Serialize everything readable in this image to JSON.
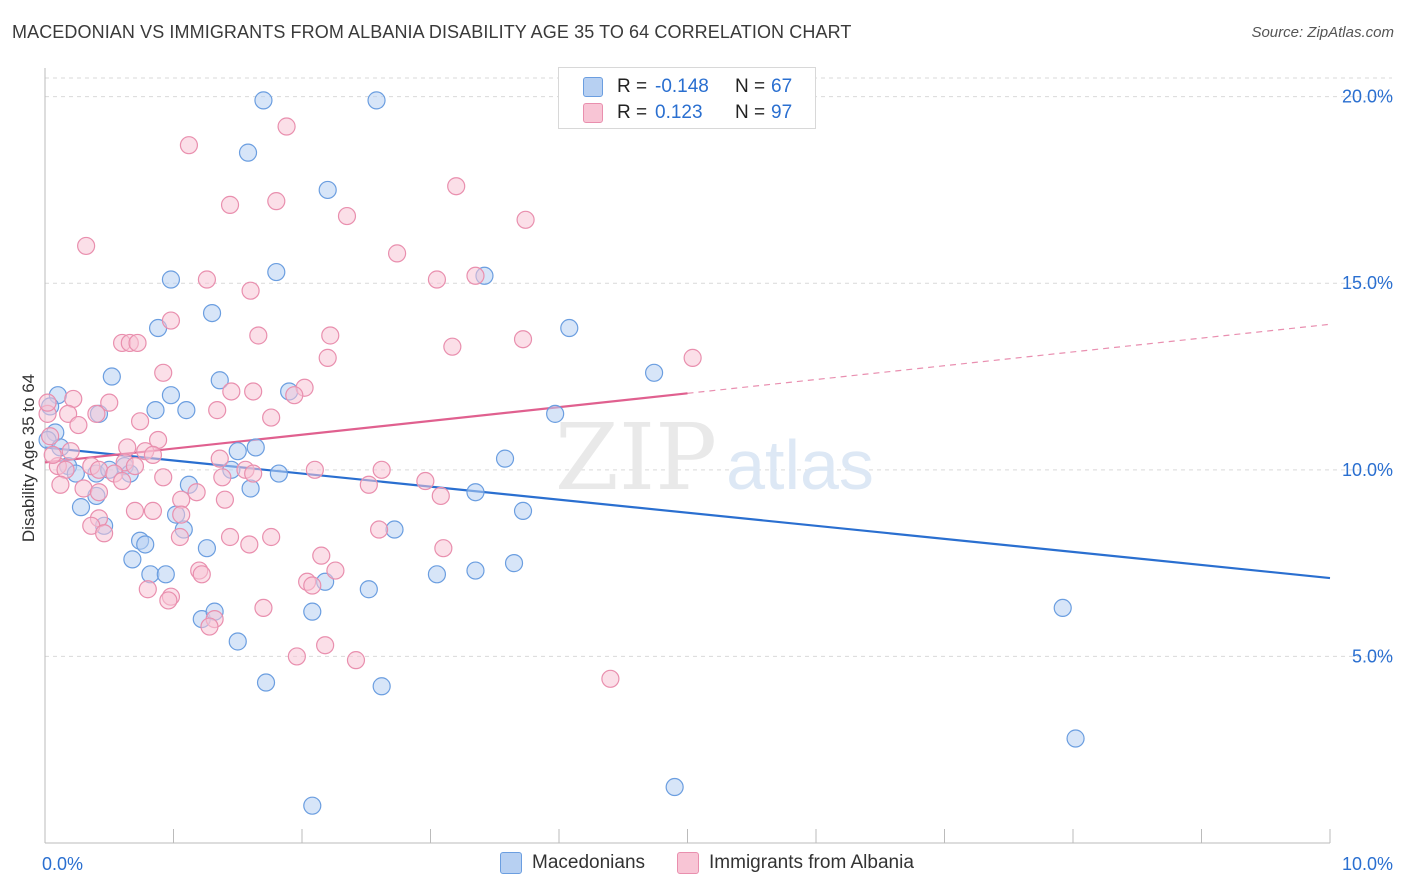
{
  "title": "MACEDONIAN VS IMMIGRANTS FROM ALBANIA DISABILITY AGE 35 TO 64 CORRELATION CHART",
  "source": "Source: ZipAtlas.com",
  "watermark": {
    "zip": "ZIP",
    "atlas": "atlas"
  },
  "legend_top": {
    "rows": [
      {
        "r_label": "R =",
        "r_value": "-0.148",
        "n_label": "N =",
        "n_value": "67"
      },
      {
        "r_label": "R =",
        "r_value": "0.123",
        "n_label": "N =",
        "n_value": "97"
      }
    ]
  },
  "legend_bottom": {
    "items": [
      {
        "label": "Macedonians"
      },
      {
        "label": "Immigrants from Albania"
      }
    ]
  },
  "colors": {
    "blue_fill": "#b7d0f2",
    "blue_stroke": "#6b9ee0",
    "blue_line": "#2a6fd0",
    "pink_fill": "#f8c5d5",
    "pink_stroke": "#e98fae",
    "pink_line": "#e0608f",
    "axis_text": "#2a6fd0",
    "grid": "#d9d9d9"
  },
  "chart_data": {
    "type": "scatter",
    "title": "MACEDONIAN VS IMMIGRANTS FROM ALBANIA DISABILITY AGE 35 TO 64 CORRELATION CHART",
    "xlabel": "",
    "ylabel": "Disability Age 35 to 64",
    "xlim": [
      0,
      10
    ],
    "ylim": [
      0,
      20.5
    ],
    "x_tick_labels": [
      {
        "value": 0,
        "label": "0.0%"
      },
      {
        "value": 10,
        "label": "10.0%"
      }
    ],
    "y_ticks": [
      {
        "value": 5,
        "label": "5.0%"
      },
      {
        "value": 10,
        "label": "10.0%"
      },
      {
        "value": 15,
        "label": "15.0%"
      },
      {
        "value": 20,
        "label": "20.0%"
      }
    ],
    "grid": true,
    "series": [
      {
        "name": "Macedonians",
        "color": "blue",
        "R": -0.148,
        "N": 67,
        "trend": {
          "x0": 0.0,
          "y0": 10.6,
          "x1": 10.0,
          "y1": 7.1,
          "dashed_from": null
        },
        "points": [
          [
            1.7,
            19.9
          ],
          [
            2.58,
            19.9
          ],
          [
            4.08,
            19.6
          ],
          [
            1.58,
            18.5
          ],
          [
            2.2,
            17.5
          ],
          [
            0.98,
            15.1
          ],
          [
            1.8,
            15.3
          ],
          [
            3.42,
            15.2
          ],
          [
            1.3,
            14.2
          ],
          [
            0.88,
            13.8
          ],
          [
            4.08,
            13.8
          ],
          [
            0.52,
            12.5
          ],
          [
            1.36,
            12.4
          ],
          [
            0.1,
            12.0
          ],
          [
            0.98,
            12.0
          ],
          [
            1.9,
            12.1
          ],
          [
            4.74,
            12.6
          ],
          [
            0.04,
            11.7
          ],
          [
            0.42,
            11.5
          ],
          [
            0.86,
            11.6
          ],
          [
            1.1,
            11.6
          ],
          [
            3.97,
            11.5
          ],
          [
            0.08,
            11.0
          ],
          [
            0.02,
            10.8
          ],
          [
            0.12,
            10.6
          ],
          [
            1.5,
            10.5
          ],
          [
            1.64,
            10.6
          ],
          [
            3.58,
            10.3
          ],
          [
            0.18,
            10.1
          ],
          [
            0.62,
            10.1
          ],
          [
            0.24,
            9.9
          ],
          [
            0.4,
            9.9
          ],
          [
            0.66,
            9.9
          ],
          [
            1.45,
            10.0
          ],
          [
            1.82,
            9.9
          ],
          [
            0.5,
            10.0
          ],
          [
            1.12,
            9.6
          ],
          [
            1.6,
            9.5
          ],
          [
            0.4,
            9.3
          ],
          [
            3.35,
            9.4
          ],
          [
            0.28,
            9.0
          ],
          [
            1.02,
            8.8
          ],
          [
            3.72,
            8.9
          ],
          [
            0.46,
            8.5
          ],
          [
            1.08,
            8.4
          ],
          [
            2.72,
            8.4
          ],
          [
            0.74,
            8.1
          ],
          [
            0.78,
            8.0
          ],
          [
            1.26,
            7.9
          ],
          [
            0.68,
            7.6
          ],
          [
            3.65,
            7.5
          ],
          [
            0.82,
            7.2
          ],
          [
            0.94,
            7.2
          ],
          [
            3.05,
            7.2
          ],
          [
            3.35,
            7.3
          ],
          [
            2.18,
            7.0
          ],
          [
            2.52,
            6.8
          ],
          [
            7.92,
            6.3
          ],
          [
            1.22,
            6.0
          ],
          [
            1.32,
            6.2
          ],
          [
            2.08,
            6.2
          ],
          [
            1.5,
            5.4
          ],
          [
            1.72,
            4.3
          ],
          [
            2.62,
            4.2
          ],
          [
            8.02,
            2.8
          ],
          [
            4.9,
            1.5
          ],
          [
            2.08,
            1.0
          ]
        ]
      },
      {
        "name": "Immigrants from Albania",
        "color": "pink",
        "R": 0.123,
        "N": 97,
        "trend": {
          "x0": 0.0,
          "y0": 10.2,
          "x1": 10.0,
          "y1": 13.9,
          "dashed_from": 5.0
        },
        "points": [
          [
            1.12,
            18.7
          ],
          [
            1.88,
            19.2
          ],
          [
            1.8,
            17.2
          ],
          [
            1.44,
            17.1
          ],
          [
            3.2,
            17.6
          ],
          [
            2.35,
            16.8
          ],
          [
            3.74,
            16.7
          ],
          [
            0.32,
            16.0
          ],
          [
            2.74,
            15.8
          ],
          [
            1.26,
            15.1
          ],
          [
            1.6,
            14.8
          ],
          [
            3.05,
            15.1
          ],
          [
            3.35,
            15.2
          ],
          [
            0.98,
            14.0
          ],
          [
            1.66,
            13.6
          ],
          [
            2.22,
            13.6
          ],
          [
            0.6,
            13.4
          ],
          [
            0.66,
            13.4
          ],
          [
            0.72,
            13.4
          ],
          [
            3.17,
            13.3
          ],
          [
            3.72,
            13.5
          ],
          [
            2.2,
            13.0
          ],
          [
            5.04,
            13.0
          ],
          [
            0.92,
            12.6
          ],
          [
            1.45,
            12.1
          ],
          [
            1.62,
            12.1
          ],
          [
            2.02,
            12.2
          ],
          [
            1.94,
            12.0
          ],
          [
            0.22,
            11.9
          ],
          [
            0.5,
            11.8
          ],
          [
            0.02,
            11.5
          ],
          [
            0.18,
            11.5
          ],
          [
            0.4,
            11.5
          ],
          [
            1.34,
            11.6
          ],
          [
            1.76,
            11.4
          ],
          [
            0.74,
            11.3
          ],
          [
            0.26,
            11.2
          ],
          [
            0.04,
            10.9
          ],
          [
            0.2,
            10.5
          ],
          [
            0.64,
            10.6
          ],
          [
            0.78,
            10.5
          ],
          [
            0.88,
            10.8
          ],
          [
            0.84,
            10.4
          ],
          [
            1.36,
            10.3
          ],
          [
            0.62,
            10.2
          ],
          [
            0.1,
            10.1
          ],
          [
            0.36,
            10.1
          ],
          [
            0.16,
            10.0
          ],
          [
            0.42,
            10.0
          ],
          [
            0.54,
            9.9
          ],
          [
            0.7,
            10.1
          ],
          [
            1.56,
            10.0
          ],
          [
            1.62,
            9.9
          ],
          [
            2.1,
            10.0
          ],
          [
            2.62,
            10.0
          ],
          [
            0.6,
            9.7
          ],
          [
            0.92,
            9.8
          ],
          [
            1.38,
            9.8
          ],
          [
            2.52,
            9.6
          ],
          [
            2.96,
            9.7
          ],
          [
            0.12,
            9.6
          ],
          [
            0.3,
            9.5
          ],
          [
            0.42,
            9.4
          ],
          [
            1.06,
            9.2
          ],
          [
            1.18,
            9.4
          ],
          [
            1.4,
            9.2
          ],
          [
            3.08,
            9.3
          ],
          [
            0.7,
            8.9
          ],
          [
            0.84,
            8.9
          ],
          [
            1.06,
            8.8
          ],
          [
            0.42,
            8.7
          ],
          [
            0.36,
            8.5
          ],
          [
            0.46,
            8.3
          ],
          [
            1.05,
            8.2
          ],
          [
            1.44,
            8.2
          ],
          [
            1.76,
            8.2
          ],
          [
            2.6,
            8.4
          ],
          [
            1.59,
            8.0
          ],
          [
            3.1,
            7.9
          ],
          [
            2.15,
            7.7
          ],
          [
            1.2,
            7.3
          ],
          [
            1.22,
            7.2
          ],
          [
            2.26,
            7.3
          ],
          [
            2.04,
            7.0
          ],
          [
            2.08,
            6.9
          ],
          [
            0.8,
            6.8
          ],
          [
            0.98,
            6.6
          ],
          [
            0.96,
            6.5
          ],
          [
            1.7,
            6.3
          ],
          [
            1.32,
            6.0
          ],
          [
            1.28,
            5.8
          ],
          [
            2.18,
            5.3
          ],
          [
            1.96,
            5.0
          ],
          [
            2.42,
            4.9
          ],
          [
            4.4,
            4.4
          ],
          [
            0.02,
            11.8
          ],
          [
            0.06,
            10.4
          ]
        ]
      }
    ]
  }
}
